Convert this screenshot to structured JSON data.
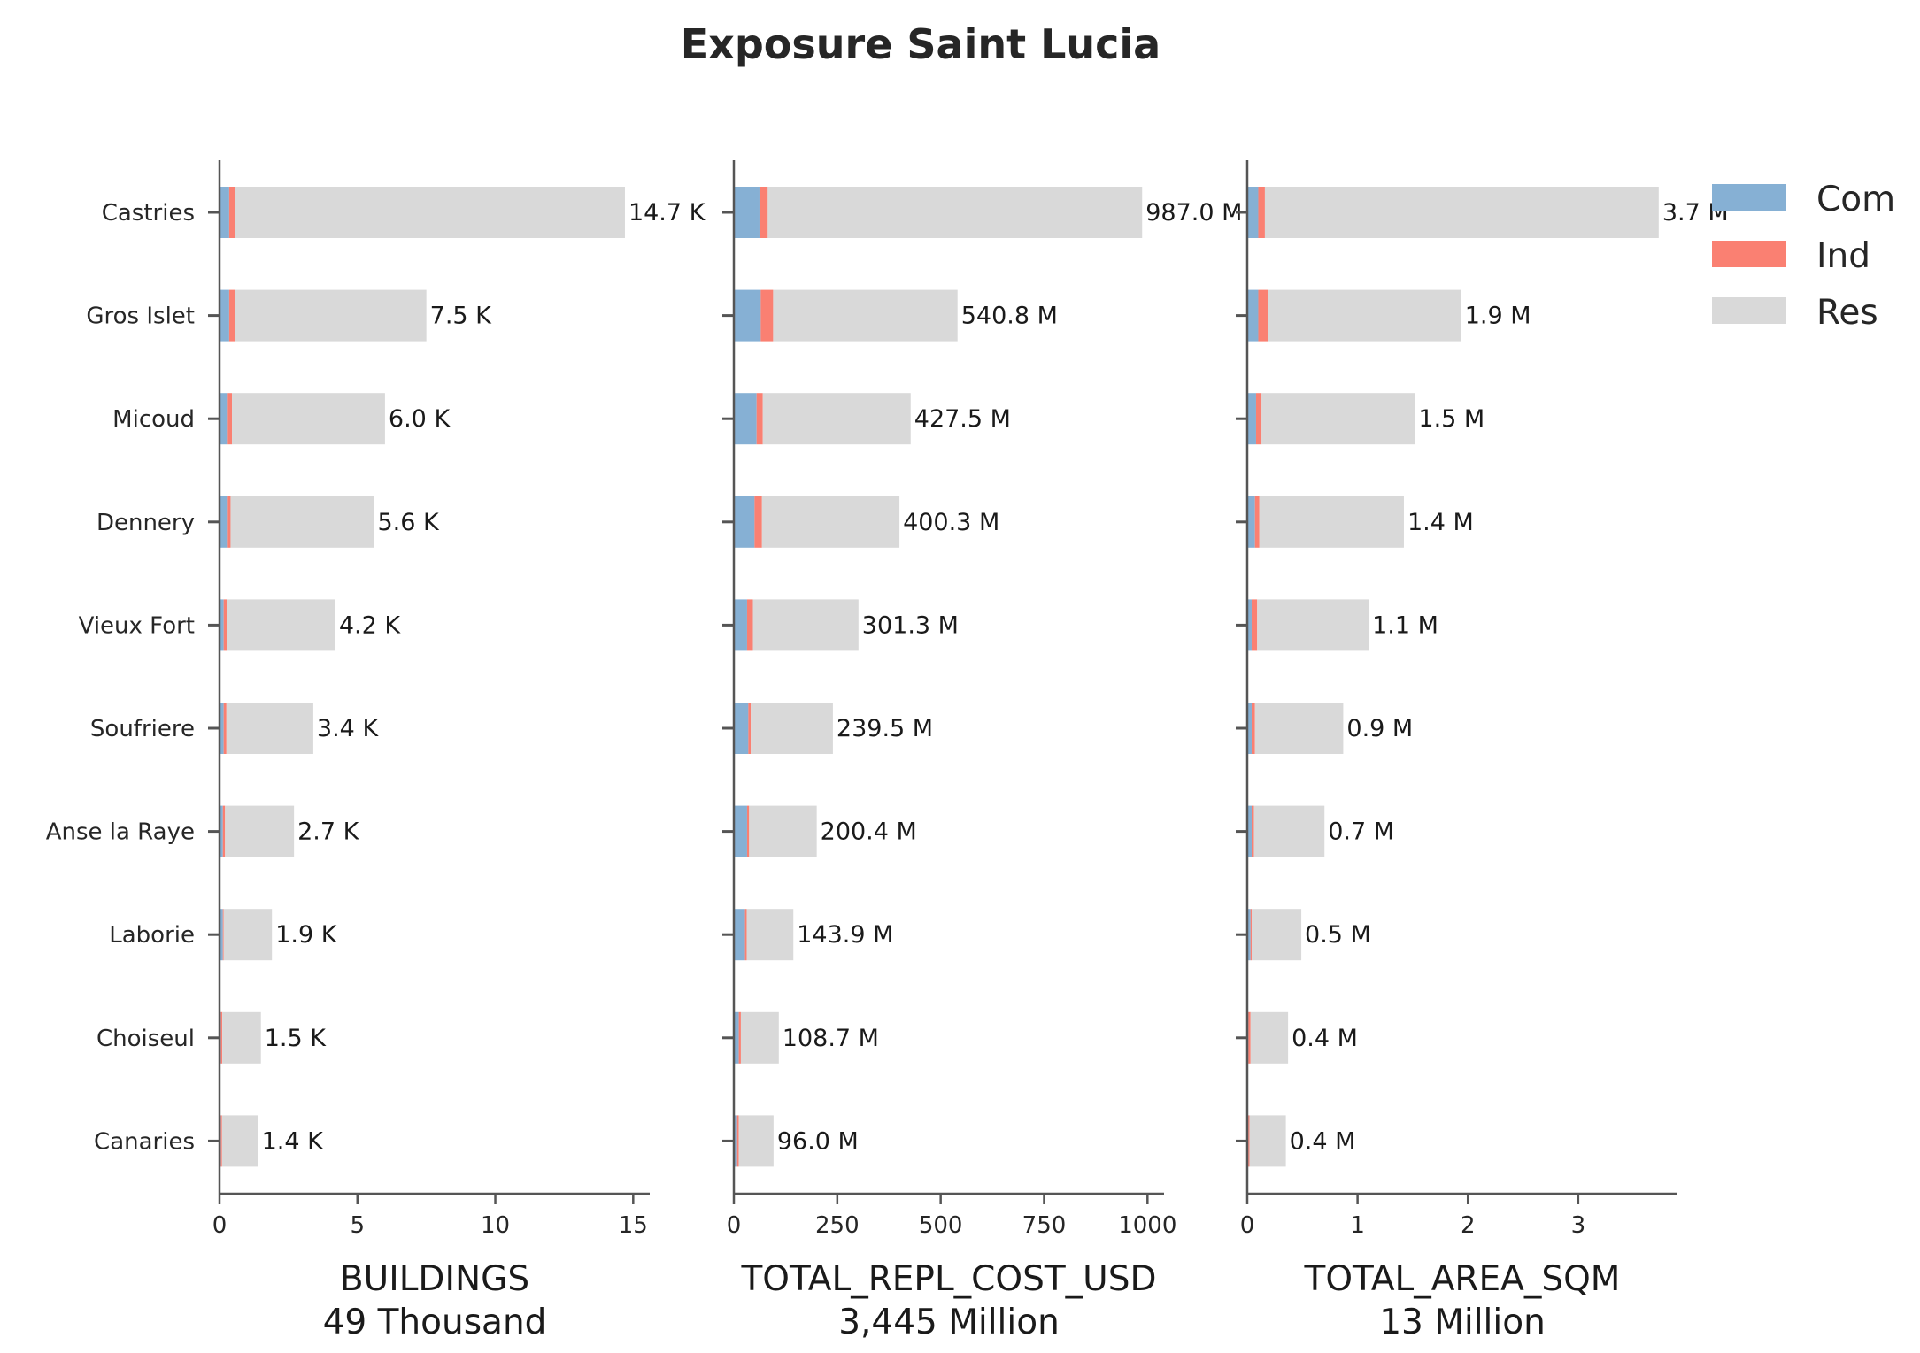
{
  "title": "Exposure Saint Lucia",
  "colors": {
    "Com": "#86b0d4",
    "Ind": "#fa8072",
    "Res": "#d9d9d9",
    "axis": "#555555"
  },
  "chart_data": {
    "type": "bar",
    "orientation": "horizontal",
    "stacked": true,
    "title": "Exposure Saint Lucia",
    "legend": {
      "position": "top-right",
      "entries": [
        "Com",
        "Ind",
        "Res"
      ]
    },
    "categories": [
      "Castries",
      "Gros Islet",
      "Micoud",
      "Dennery",
      "Vieux Fort",
      "Soufriere",
      "Anse la Raye",
      "Laborie",
      "Choiseul",
      "Canaries"
    ],
    "panels": [
      {
        "xlabel": "BUILDINGS",
        "xlabel2": "49 Thousand",
        "xlim": [
          0,
          15.6
        ],
        "xticks": [
          0,
          5,
          10,
          15
        ],
        "series": [
          {
            "name": "Com",
            "values": [
              0.35,
              0.35,
              0.3,
              0.3,
              0.15,
              0.15,
              0.12,
              0.12,
              0.05,
              0.05
            ]
          },
          {
            "name": "Ind",
            "values": [
              0.2,
              0.2,
              0.15,
              0.1,
              0.12,
              0.1,
              0.08,
              0.03,
              0.05,
              0.04
            ]
          },
          {
            "name": "Res",
            "values": [
              14.15,
              6.95,
              5.55,
              5.2,
              3.93,
              3.15,
              2.5,
              1.75,
              1.4,
              1.31
            ]
          }
        ],
        "labels": [
          "14.7 K",
          "7.5 K",
          "6.0 K",
          "5.6 K",
          "4.2 K",
          "3.4 K",
          "2.7 K",
          "1.9 K",
          "1.5 K",
          "1.4 K"
        ]
      },
      {
        "xlabel": "TOTAL_REPL_COST_USD",
        "xlabel2": "3,445 Million",
        "xlim": [
          0,
          1040
        ],
        "xticks": [
          0,
          250,
          500,
          750,
          1000
        ],
        "series": [
          {
            "name": "Com",
            "values": [
              62,
              65,
              55,
              50,
              32,
              35,
              32,
              27,
              12,
              8
            ]
          },
          {
            "name": "Ind",
            "values": [
              20,
              30,
              15,
              18,
              14,
              6,
              5,
              4,
              5,
              4
            ]
          },
          {
            "name": "Res",
            "values": [
              905,
              445.8,
              357.5,
              332.3,
              255.3,
              198.5,
              163.4,
              112.9,
              91.7,
              84
            ]
          }
        ],
        "labels": [
          "987.0 M",
          "540.8 M",
          "427.5 M",
          "400.3 M",
          "301.3 M",
          "239.5 M",
          "200.4 M",
          "143.9 M",
          "108.7 M",
          "96.0 M"
        ]
      },
      {
        "xlabel": "TOTAL_AREA_SQM",
        "xlabel2": "13 Million",
        "xlim": [
          0,
          3.9
        ],
        "xticks": [
          0,
          1,
          2,
          3
        ],
        "series": [
          {
            "name": "Com",
            "values": [
              0.1,
              0.1,
              0.08,
              0.07,
              0.04,
              0.04,
              0.04,
              0.03,
              0.01,
              0.01
            ]
          },
          {
            "name": "Ind",
            "values": [
              0.06,
              0.09,
              0.05,
              0.04,
              0.05,
              0.03,
              0.02,
              0.01,
              0.02,
              0.01
            ]
          },
          {
            "name": "Res",
            "values": [
              3.57,
              1.75,
              1.39,
              1.31,
              1.01,
              0.8,
              0.64,
              0.45,
              0.34,
              0.33
            ]
          }
        ],
        "labels": [
          "3.7 M",
          "1.9 M",
          "1.5 M",
          "1.4 M",
          "1.1 M",
          "0.9 M",
          "0.7 M",
          "0.5 M",
          "0.4 M",
          "0.4 M"
        ]
      }
    ]
  }
}
